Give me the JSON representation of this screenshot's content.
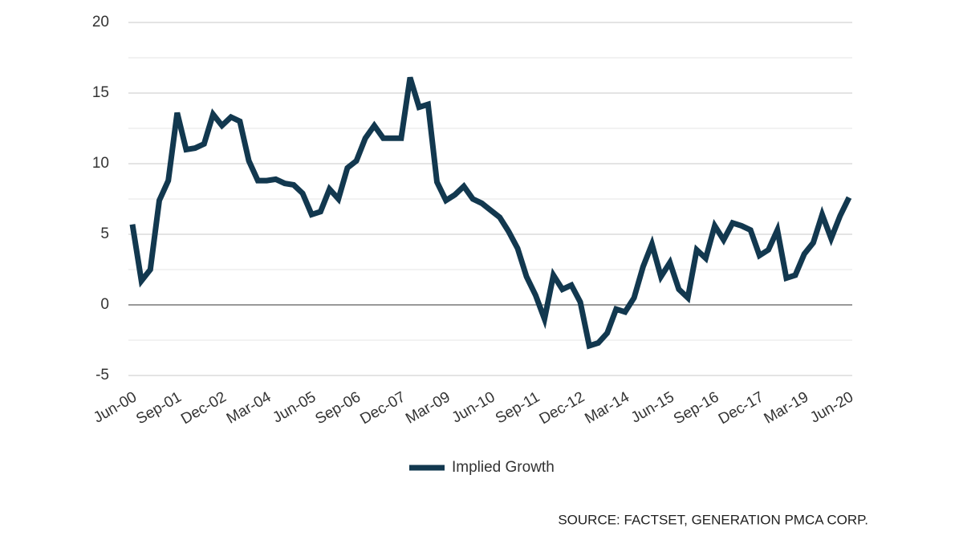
{
  "chart_data": {
    "type": "line",
    "categories": [
      "Jun-00",
      null,
      null,
      null,
      null,
      "Sep-01",
      null,
      null,
      null,
      null,
      "Dec-02",
      null,
      null,
      null,
      null,
      "Mar-04",
      null,
      null,
      null,
      null,
      "Jun-05",
      null,
      null,
      null,
      null,
      "Sep-06",
      null,
      null,
      null,
      null,
      "Dec-07",
      null,
      null,
      null,
      null,
      "Mar-09",
      null,
      null,
      null,
      null,
      "Jun-10",
      null,
      null,
      null,
      null,
      "Sep-11",
      null,
      null,
      null,
      null,
      "Dec-12",
      null,
      null,
      null,
      null,
      "Mar-14",
      null,
      null,
      null,
      null,
      "Jun-15",
      null,
      null,
      null,
      null,
      "Sep-16",
      null,
      null,
      null,
      null,
      "Dec-17",
      null,
      null,
      null,
      null,
      "Mar-19",
      null,
      null,
      null,
      null,
      "Jun-20"
    ],
    "series": [
      {
        "name": "Implied Growth",
        "color": "#12384f",
        "values": [
          5.7,
          1.7,
          2.5,
          7.4,
          8.8,
          13.6,
          11.0,
          11.1,
          11.4,
          13.5,
          12.7,
          13.3,
          13.0,
          10.2,
          8.8,
          8.8,
          8.9,
          8.6,
          8.5,
          7.9,
          6.4,
          6.6,
          8.2,
          7.5,
          9.7,
          10.2,
          11.8,
          12.7,
          11.8,
          11.8,
          11.8,
          16.1,
          14.0,
          14.2,
          8.7,
          7.4,
          7.8,
          8.4,
          7.5,
          7.2,
          6.7,
          6.2,
          5.2,
          4.0,
          2.0,
          0.7,
          -1.0,
          2.1,
          1.1,
          1.4,
          0.2,
          -2.9,
          -2.7,
          -2.0,
          -0.3,
          -0.5,
          0.5,
          2.7,
          4.3,
          2.0,
          3.0,
          1.1,
          0.5,
          3.9,
          3.3,
          5.6,
          4.6,
          5.8,
          5.6,
          5.3,
          3.5,
          3.9,
          5.3,
          1.9,
          2.1,
          3.6,
          4.4,
          6.4,
          4.7,
          6.3,
          7.6
        ]
      }
    ],
    "ylim": [
      -5,
      20
    ],
    "yticks": [
      -5,
      0,
      5,
      10,
      15,
      20
    ],
    "minor_yticks": [
      -2.5,
      2.5,
      7.5,
      12.5,
      17.5
    ],
    "grid": true,
    "legend": "bottom",
    "source": "SOURCE: FACTSET, GENERATION PMCA CORP."
  }
}
